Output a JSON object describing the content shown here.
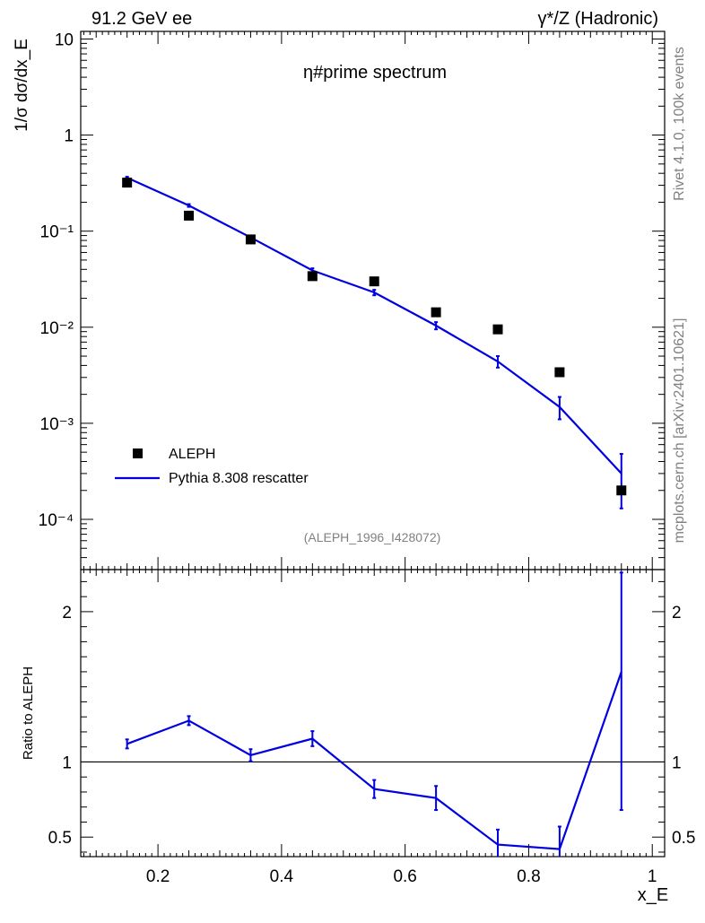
{
  "header": {
    "left": "91.2 GeV ee",
    "right": "γ*/Z (Hadronic)"
  },
  "side_labels": {
    "rivet": "Rivet 4.1.0,  100k events",
    "mcplots": "mcplots.cern.ch [arXiv:2401.10621]"
  },
  "watermark": "(ALEPH_1996_I428072)",
  "chart_data": [
    {
      "type": "scatter",
      "title": "η#prime spectrum",
      "ylabel": "1/σ  dσ/dx_E",
      "yscale": "log",
      "ylim": [
        3e-05,
        12
      ],
      "xlim": [
        0.075,
        1.02
      ],
      "yticks": [
        {
          "value": 10,
          "label": "10"
        },
        {
          "value": 1,
          "label": "1"
        },
        {
          "value": 0.1,
          "label": "10⁻¹"
        },
        {
          "value": 0.01,
          "label": "10⁻²"
        },
        {
          "value": 0.001,
          "label": "10⁻³"
        },
        {
          "value": 0.0001,
          "label": "10⁻⁴"
        }
      ],
      "legend": {
        "position": "bottom-left",
        "entries": [
          "ALEPH",
          "Pythia 8.308 rescatter"
        ]
      },
      "series": [
        {
          "name": "ALEPH",
          "style": "markers",
          "color": "#000000",
          "x": [
            0.15,
            0.25,
            0.35,
            0.45,
            0.55,
            0.65,
            0.75,
            0.85,
            0.95
          ],
          "y": [
            0.32,
            0.145,
            0.082,
            0.034,
            0.03,
            0.0143,
            0.0095,
            0.0034,
            0.0002
          ]
        },
        {
          "name": "Pythia 8.308 rescatter",
          "style": "line",
          "color": "#0000e0",
          "x": [
            0.15,
            0.25,
            0.35,
            0.45,
            0.55,
            0.65,
            0.75,
            0.85,
            0.95
          ],
          "y": [
            0.36,
            0.185,
            0.086,
            0.039,
            0.023,
            0.0104,
            0.0044,
            0.00148,
            0.0003
          ],
          "err_low": [
            0.008,
            0.006,
            0.003,
            0.002,
            0.0015,
            0.0009,
            0.0006,
            0.00038,
            0.00017
          ],
          "err_high": [
            0.008,
            0.006,
            0.003,
            0.002,
            0.0015,
            0.0009,
            0.0006,
            0.0004,
            0.00018
          ]
        }
      ]
    },
    {
      "type": "line",
      "ylabel": "Ratio to ALEPH",
      "xlabel": "x_E",
      "ylim": [
        0.37,
        2.28
      ],
      "xlim": [
        0.075,
        1.02
      ],
      "reference_line": 1,
      "yticks": [
        {
          "value": 0.5,
          "label": "0.5"
        },
        {
          "value": 1,
          "label": "1"
        },
        {
          "value": 2,
          "label": "2"
        }
      ],
      "xticks": [
        {
          "value": 0.2,
          "label": "0.2"
        },
        {
          "value": 0.4,
          "label": "0.4"
        },
        {
          "value": 0.6,
          "label": "0.6"
        },
        {
          "value": 0.8,
          "label": "0.8"
        },
        {
          "value": 1.0,
          "label": "1"
        }
      ],
      "series": [
        {
          "name": "Pythia 8.308 rescatter / ALEPH",
          "color": "#0000e0",
          "x": [
            0.15,
            0.25,
            0.35,
            0.45,
            0.55,
            0.65,
            0.75,
            0.85,
            0.95
          ],
          "y": [
            1.12,
            1.275,
            1.045,
            1.155,
            0.82,
            0.76,
            0.45,
            0.42,
            1.6
          ],
          "err_low": [
            0.03,
            0.03,
            0.04,
            0.05,
            0.06,
            0.08,
            0.1,
            0.1,
            0.92
          ],
          "err_high": [
            0.03,
            0.03,
            0.04,
            0.05,
            0.06,
            0.08,
            0.1,
            0.15,
            0.66
          ]
        }
      ]
    }
  ]
}
